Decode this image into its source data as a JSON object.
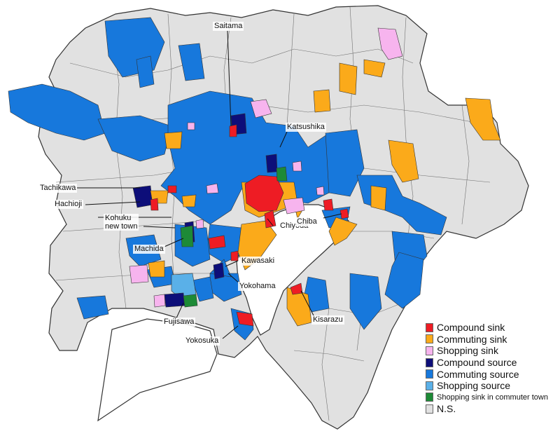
{
  "colors": {
    "compound_sink": "#ee1c24",
    "commuting_sink": "#fbaa1a",
    "shopping_sink": "#f7b4ee",
    "compound_source": "#0d0e79",
    "commuting_source": "#1778dc",
    "shopping_source": "#5ab0e8",
    "shopping_sink_commuter": "#1d8a36",
    "ns": "#e1e1e1",
    "water": "#ffffff",
    "border": "#333333"
  },
  "labels": {
    "saitama": "Saitama",
    "katsushika": "Katsushika",
    "tachikawa": "Tachikawa",
    "hachioji": "Hachioji",
    "kohuku_line1": "Kohuku",
    "kohuku_line2": "new town",
    "chiyoda": "Chiyoda",
    "chiba": "Chiba",
    "machida": "Machida",
    "kawasaki": "Kawasaki",
    "yokohama": "Yokohama",
    "kisarazu": "Kisarazu",
    "fujisawa": "Fujisawa",
    "yokosuka": "Yokosuka"
  },
  "legend": [
    {
      "label": "Compound sink",
      "color": "#ee1c24"
    },
    {
      "label": "Commuting sink",
      "color": "#fbaa1a"
    },
    {
      "label": "Shopping sink",
      "color": "#f7b4ee"
    },
    {
      "label": "Compound source",
      "color": "#0d0e79"
    },
    {
      "label": "Commuting source",
      "color": "#1778dc"
    },
    {
      "label": "Shopping source",
      "color": "#5ab0e8"
    },
    {
      "label": "Shopping sink in commuter town",
      "color": "#1d8a36"
    },
    {
      "label": "N.S.",
      "color": "#e1e1e1"
    }
  ]
}
